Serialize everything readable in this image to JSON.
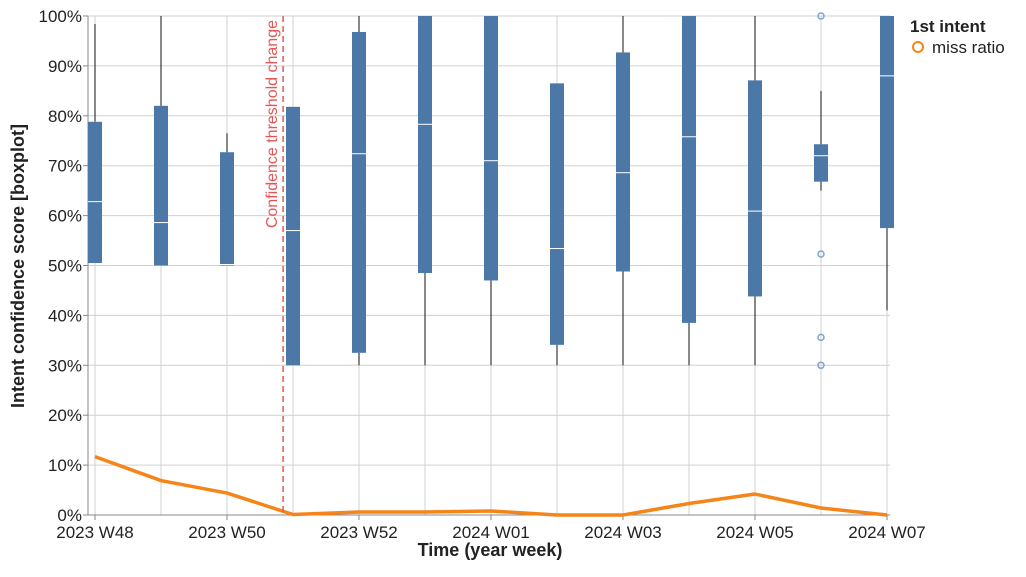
{
  "chart_data": {
    "type": "boxplot-line",
    "categories": [
      "2023 W48",
      null,
      "2023 W50",
      null,
      "2023 W52",
      null,
      "2024 W01",
      null,
      "2024 W03",
      null,
      "2024 W05",
      null,
      "2024 W07"
    ],
    "x_label": "Time (year week)",
    "y_label": "Intent confidence score [boxplot]",
    "ylim": [
      0,
      100
    ],
    "yticks": [
      {
        "value": 0,
        "label": "0%"
      },
      {
        "value": 10,
        "label": "10%"
      },
      {
        "value": 20,
        "label": "20%"
      },
      {
        "value": 30,
        "label": "30%"
      },
      {
        "value": 40,
        "label": "40%"
      },
      {
        "value": 50,
        "label": "50%"
      },
      {
        "value": 60,
        "label": "60%"
      },
      {
        "value": 70,
        "label": "70%"
      },
      {
        "value": 80,
        "label": "80%"
      },
      {
        "value": 90,
        "label": "90%"
      },
      {
        "value": 100,
        "label": "100%"
      }
    ],
    "grid": true,
    "boxes": {
      "color": "#4c78a8",
      "min": [
        50.5,
        50,
        50,
        30,
        30,
        30,
        30,
        30,
        30,
        30,
        30,
        65,
        41
      ],
      "q1": [
        50.5,
        50,
        50,
        30,
        32.5,
        48.5,
        47,
        34.1,
        48.8,
        38.5,
        43.8,
        66.8,
        57.5
      ],
      "median": [
        62.8,
        58.6,
        50.2,
        57,
        72.4,
        78.3,
        71,
        53.4,
        68.6,
        75.8,
        60.9,
        72,
        88
      ],
      "q3": [
        78.8,
        82,
        72.7,
        81.8,
        96.8,
        100,
        100,
        86.5,
        92.7,
        100,
        87.1,
        74.3,
        100
      ],
      "max": [
        98.4,
        100,
        76.5,
        81.8,
        100,
        100,
        100,
        86.5,
        100,
        100,
        100,
        85,
        100
      ],
      "outliers": [
        [],
        [],
        [],
        [],
        [],
        [],
        [],
        [],
        [],
        [],
        [],
        [
          100,
          52.3,
          35.6,
          30
        ],
        []
      ]
    },
    "series": [
      {
        "name": "miss ratio",
        "color": "#f58518",
        "values": [
          11.7,
          6.9,
          4.4,
          0.1,
          0.6,
          0.6,
          0.8,
          0,
          0,
          2.3,
          4.2,
          1.4,
          0
        ]
      }
    ],
    "annotation": {
      "text": "Confidence threshold change",
      "x": 2.85,
      "color": "#e45756"
    },
    "legend": {
      "title": "1st intent",
      "position": "right"
    }
  }
}
